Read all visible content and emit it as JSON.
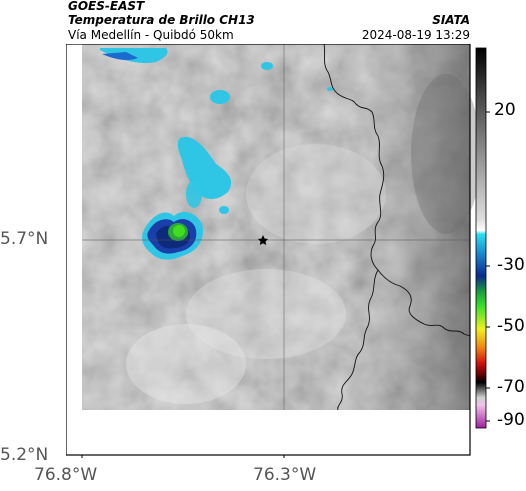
{
  "header": {
    "satellite": "GOES-EAST",
    "product": "Temperatura de Brillo CH13",
    "route": "Vía Medellín - Quibdó 50km",
    "source": "SIATA",
    "datetime": "2024-08-19 13:29"
  },
  "axes": {
    "y_ticks": [
      "5.7°N",
      "5.2°N"
    ],
    "x_ticks": [
      "76.8°W",
      "76.3°W"
    ]
  },
  "colorbar": {
    "ticks": [
      "20",
      "-30",
      "-50",
      "-70",
      "-90"
    ]
  },
  "colors": {
    "cloud_cyan": "#2fc6e6",
    "cloud_blue": "#1a3fa8",
    "cloud_green": "#3fdc20",
    "background_gray": "#c8c8c8"
  }
}
